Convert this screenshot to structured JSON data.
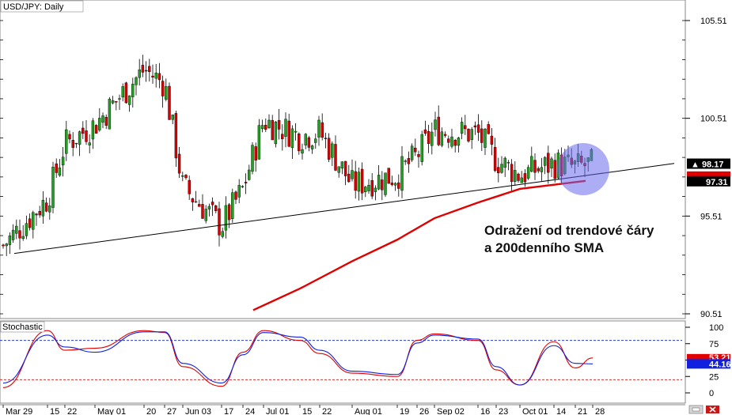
{
  "chart_data": [
    {
      "type": "candlestick",
      "title": "USD/JPY: Daily",
      "yticks": [
        "105.51",
        "100.51",
        "95.51",
        "90.51"
      ],
      "ylim": [
        90.0,
        106.6
      ],
      "xticks": [
        "Mar 29",
        "15",
        "22",
        "May 01",
        "20",
        "27",
        "Jun 03",
        "17",
        "24",
        "Jul 01",
        "15",
        "22",
        "Aug 01",
        "19",
        "26",
        "Sep 02",
        "16",
        "23",
        "Oct 01",
        "14",
        "21",
        "28"
      ],
      "last_price": "98.17",
      "sma_value": "97.31",
      "annotation": [
        "Odražení od trendové čáry",
        "a 200denního SMA"
      ],
      "close_path": [
        [
          "Mar 29",
          94.0
        ],
        [
          "15",
          96.4
        ],
        [
          "22",
          99.2
        ],
        [
          "May 01",
          100.2
        ],
        [
          "20",
          103.0
        ],
        [
          "27",
          102.3
        ],
        [
          "Jun 03",
          97.0
        ],
        [
          "17",
          95.0
        ],
        [
          "24",
          96.9
        ],
        [
          "Jul 01",
          100.4
        ],
        [
          "15",
          99.6
        ],
        [
          "22",
          99.8
        ],
        [
          "Aug 01",
          97.1
        ],
        [
          "19",
          97.6
        ],
        [
          "26",
          98.6
        ],
        [
          "Sep 02",
          99.9
        ],
        [
          "16",
          99.7
        ],
        [
          "23",
          98.4
        ],
        [
          "Oct 01",
          97.6
        ],
        [
          "14",
          98.2
        ],
        [
          "21",
          98.0
        ],
        [
          "28",
          98.17
        ]
      ],
      "sma200": [
        [
          "Jun 24",
          90.7
        ],
        [
          "Jul 15",
          91.8
        ],
        [
          "Aug 01",
          93.2
        ],
        [
          "Aug 19",
          94.3
        ],
        [
          "Sep 02",
          95.4
        ],
        [
          "Sep 16",
          96.2
        ],
        [
          "Oct 01",
          96.9
        ],
        [
          "Oct 21",
          97.31
        ]
      ],
      "trendline": {
        "from": [
          "Mar 29",
          93.6
        ],
        "to": [
          "28",
          98.2
        ]
      }
    },
    {
      "type": "line",
      "title": "Stochastic",
      "yticks": [
        "100",
        "75",
        "50",
        "25",
        "0"
      ],
      "ylim": [
        0,
        100
      ],
      "levels": [
        80,
        20
      ],
      "tags": [
        "53.21",
        "44.16"
      ],
      "series": [
        {
          "color": "#e00000",
          "values": [
            [
              "Mar 29",
              8
            ],
            [
              "15",
              95
            ],
            [
              "22",
              65
            ],
            [
              "May 01",
              68
            ],
            [
              "20",
              95
            ],
            [
              "27",
              92
            ],
            [
              "Jun 03",
              40
            ],
            [
              "17",
              10
            ],
            [
              "24",
              62
            ],
            [
              "Jul 01",
              95
            ],
            [
              "15",
              80
            ],
            [
              "22",
              60
            ],
            [
              "Aug 01",
              30
            ],
            [
              "19",
              25
            ],
            [
              "26",
              80
            ],
            [
              "Sep 02",
              90
            ],
            [
              "16",
              80
            ],
            [
              "23",
              35
            ],
            [
              "Oct 01",
              12
            ],
            [
              "14",
              78
            ],
            [
              "21",
              38
            ],
            [
              "28",
              53.21
            ]
          ]
        },
        {
          "color": "#1020e0",
          "values": [
            [
              "Mar 29",
              15
            ],
            [
              "15",
              88
            ],
            [
              "22",
              70
            ],
            [
              "May 01",
              62
            ],
            [
              "20",
              93
            ],
            [
              "27",
              93
            ],
            [
              "Jun 03",
              45
            ],
            [
              "17",
              15
            ],
            [
              "24",
              58
            ],
            [
              "Jul 01",
              92
            ],
            [
              "15",
              85
            ],
            [
              "22",
              65
            ],
            [
              "Aug 01",
              33
            ],
            [
              "19",
              28
            ],
            [
              "26",
              76
            ],
            [
              "Sep 02",
              88
            ],
            [
              "16",
              82
            ],
            [
              "23",
              40
            ],
            [
              "Oct 01",
              12
            ],
            [
              "14",
              72
            ],
            [
              "21",
              45
            ],
            [
              "28",
              44.16
            ]
          ]
        }
      ]
    }
  ],
  "colors": {
    "bull": "#22a022",
    "bear": "#dd0000",
    "sma": "#e00000",
    "trend": "#000000",
    "highlight": "#6a6aee",
    "price_tag_bg": "#000000",
    "price_tag_fg": "#ffffff",
    "level80": "#2a3ec8",
    "level20": "#d03030"
  },
  "icons": [
    "settings-icon",
    "close-icon"
  ]
}
